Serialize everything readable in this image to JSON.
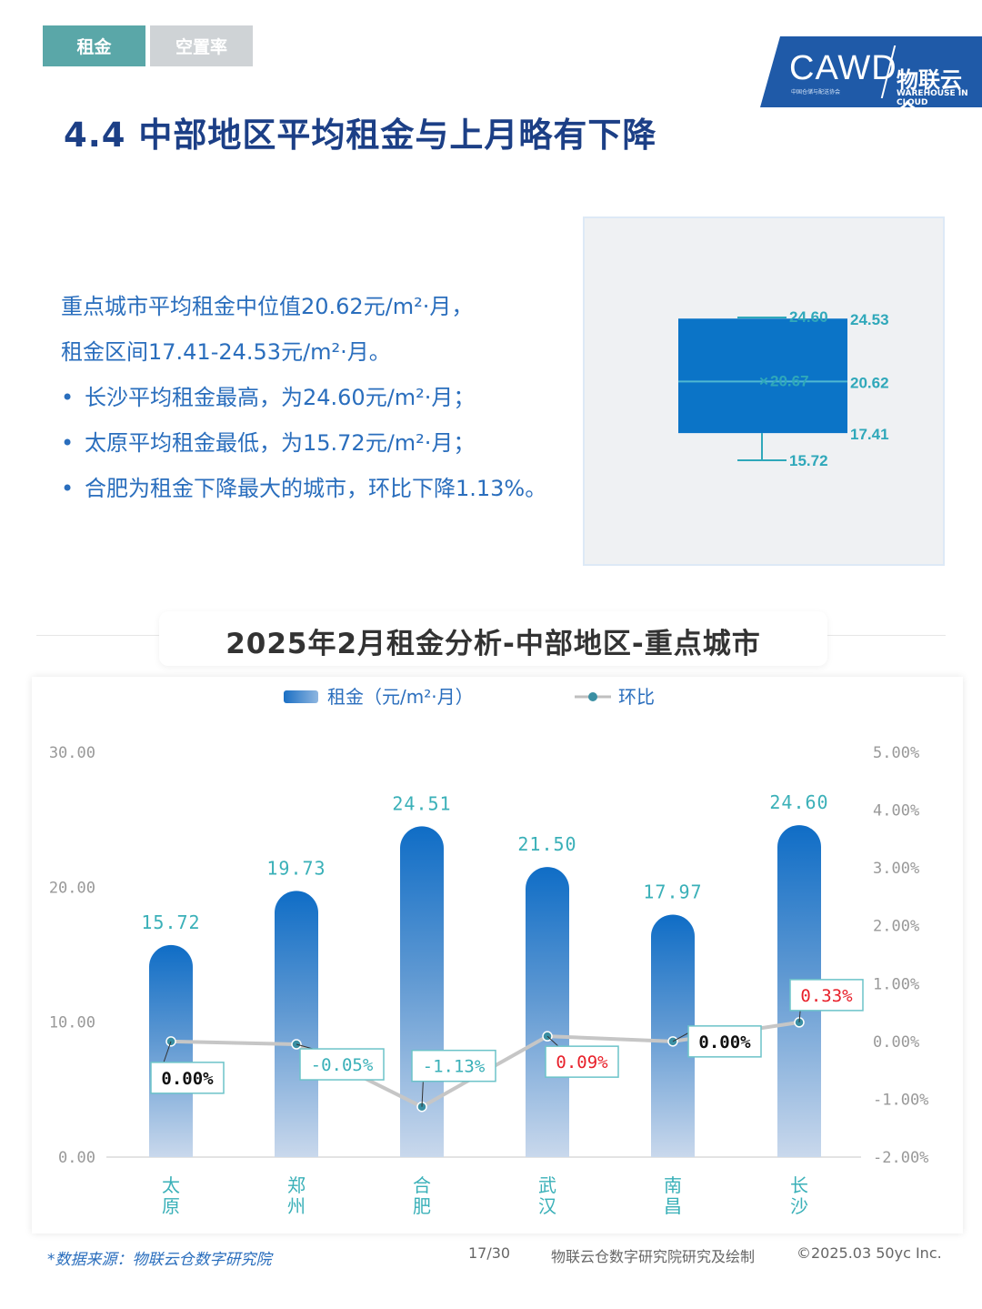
{
  "tabs": [
    {
      "label": "租金",
      "active": true
    },
    {
      "label": "空置率",
      "active": false
    }
  ],
  "logo": {
    "cawd": "CAWD",
    "cawd_sub": "中国仓储与配送协会",
    "right": "物联云仓",
    "eng": "WAREHOUSE IN CLOUD"
  },
  "page_title": "4.4 中部地区平均租金与上月略有下降",
  "summary": {
    "line1": "重点城市平均租金中位值20.62元/m²·月，",
    "line2": "租金区间17.41-24.53元/m²·月。",
    "bullets": [
      "长沙平均租金最高，为24.60元/m²·月；",
      "太原平均租金最低，为15.72元/m²·月；",
      "合肥为租金下降最大的城市，环比下降1.13%。"
    ]
  },
  "boxplot": {
    "max": 24.6,
    "q3": 24.53,
    "mean": 20.67,
    "median": 20.62,
    "q1": 17.41,
    "min": 15.72,
    "labels": {
      "max": "24.60",
      "q3": "24.53",
      "mean": "20.67",
      "median": "20.62",
      "q1": "17.41",
      "min": "15.72"
    },
    "colors": {
      "box": "#0b74c7",
      "line": "#2fa8ba",
      "text": "#2fa8ba"
    }
  },
  "chart_data": {
    "type": "bar",
    "title": "2025年2月租金分析-中部地区-重点城市",
    "categories": [
      "太原",
      "郑州",
      "合肥",
      "武汉",
      "南昌",
      "长沙"
    ],
    "series": [
      {
        "name": "租金（元/m²·月）",
        "type": "bar",
        "axis": "left",
        "values": [
          15.72,
          19.73,
          24.51,
          21.5,
          17.97,
          24.6
        ],
        "labels": [
          "15.72",
          "19.73",
          "24.51",
          "21.50",
          "17.97",
          "24.60"
        ],
        "color": "#1a6fc4"
      },
      {
        "name": "环比",
        "type": "line",
        "axis": "right",
        "values": [
          0.0,
          -0.05,
          -1.13,
          0.09,
          0.0,
          0.33
        ],
        "labels": [
          "0.00%",
          "-0.05%",
          "-1.13%",
          "0.09%",
          "0.00%",
          "0.33%"
        ],
        "color": "#c8c8c8"
      }
    ],
    "y_left": {
      "min": 0,
      "max": 30,
      "ticks": [
        "0.00",
        "10.00",
        "20.00",
        "30.00"
      ]
    },
    "y_right": {
      "min": -2,
      "max": 5,
      "ticks": [
        "-2.00%",
        "-1.00%",
        "0.00%",
        "1.00%",
        "2.00%",
        "3.00%",
        "4.00%",
        "5.00%"
      ]
    },
    "legend": "top",
    "grid": false,
    "colors": {
      "bar_label": "#3ab0b8",
      "axis_tick": "#999999",
      "category": "#3ab0b8",
      "negative_label": "#3ab0b8",
      "positive_label": "#e8202a",
      "zero_label": "#111111"
    }
  },
  "footer": {
    "source": "*数据来源：物联云仓数字研究院",
    "page": "17/30",
    "credit": "物联云仓数字研究院研究及绘制",
    "copyright": "©2025.03 50yc Inc."
  }
}
